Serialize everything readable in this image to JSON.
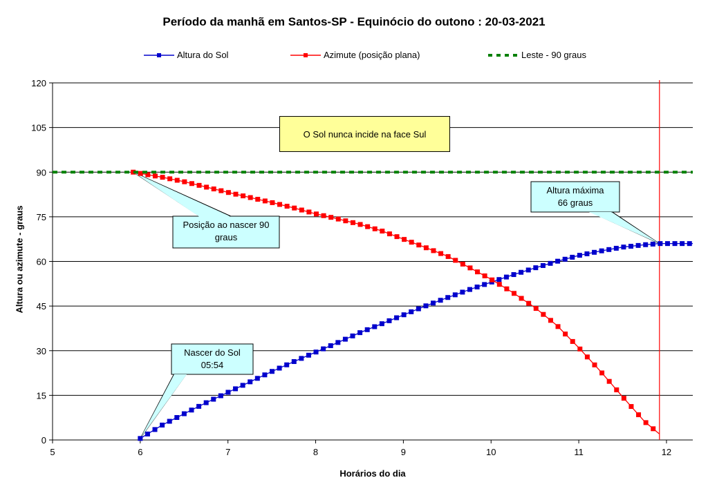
{
  "chart_data": {
    "type": "line",
    "title": "Período da manhã em Santos-SP  -  Equinócio do outono : 20-03-2021",
    "xlabel": "Horários do dia",
    "ylabel": "Altura ou azimute - graus",
    "xlim": [
      5,
      12.3
    ],
    "ylim": [
      0,
      120
    ],
    "x_ticks": [
      "5",
      "6",
      "7",
      "8",
      "9",
      "10",
      "11",
      "12"
    ],
    "y_ticks": [
      "0",
      "15",
      "30",
      "45",
      "60",
      "75",
      "90",
      "105",
      "120"
    ],
    "grid": "horizontal",
    "legend_position": "top",
    "series": [
      {
        "name": "Altura do Sol",
        "color": "#0000cc",
        "marker": "square",
        "points": [
          [
            6.0,
            0.5
          ],
          [
            6.25,
            5
          ],
          [
            6.5,
            8.8
          ],
          [
            6.75,
            12.5
          ],
          [
            7.0,
            16
          ],
          [
            7.25,
            19.5
          ],
          [
            7.5,
            23
          ],
          [
            7.75,
            26.3
          ],
          [
            8.0,
            29.5
          ],
          [
            8.25,
            32.7
          ],
          [
            8.5,
            36
          ],
          [
            8.75,
            39
          ],
          [
            9.0,
            42
          ],
          [
            9.25,
            45
          ],
          [
            9.5,
            47.8
          ],
          [
            9.75,
            50.5
          ],
          [
            10.0,
            53
          ],
          [
            10.25,
            55.5
          ],
          [
            10.5,
            57.8
          ],
          [
            10.75,
            60
          ],
          [
            11.0,
            62
          ],
          [
            11.25,
            63.5
          ],
          [
            11.5,
            64.8
          ],
          [
            11.75,
            65.6
          ],
          [
            11.92,
            66
          ],
          [
            12.3,
            66
          ]
        ]
      },
      {
        "name": "Azimute (posição plana)",
        "color": "#ff0000",
        "marker": "square",
        "points": [
          [
            5.92,
            90
          ],
          [
            6.25,
            88.3
          ],
          [
            6.5,
            86.8
          ],
          [
            6.75,
            85
          ],
          [
            7.0,
            83.2
          ],
          [
            7.25,
            81.5
          ],
          [
            7.5,
            79.8
          ],
          [
            7.75,
            78
          ],
          [
            8.0,
            76
          ],
          [
            8.25,
            74.3
          ],
          [
            8.5,
            72.5
          ],
          [
            8.75,
            70.3
          ],
          [
            9.0,
            67.5
          ],
          [
            9.25,
            64.7
          ],
          [
            9.5,
            61.8
          ],
          [
            9.75,
            58
          ],
          [
            10.0,
            54
          ],
          [
            10.25,
            49.5
          ],
          [
            10.5,
            44.5
          ],
          [
            10.75,
            38.5
          ],
          [
            11.0,
            31
          ],
          [
            11.25,
            23
          ],
          [
            11.5,
            14.5
          ],
          [
            11.75,
            6.2
          ],
          [
            11.92,
            2
          ]
        ]
      },
      {
        "name": "Leste - 90 graus",
        "color": "#008000",
        "style": "dashed",
        "points": [
          [
            5,
            90
          ],
          [
            12.3,
            90
          ]
        ]
      }
    ],
    "vertical_line": {
      "x": 11.92,
      "color": "#ff0000"
    },
    "annotations": {
      "rise_position": {
        "text": "Posição ao nascer  90\ngraus",
        "point": [
          5.92,
          90
        ]
      },
      "max_height": {
        "text": "Altura máxima\n66 graus",
        "point": [
          11.92,
          66
        ]
      },
      "sunrise": {
        "text": "Nascer do Sol\n05:54",
        "point": [
          6.0,
          0.5
        ]
      },
      "note": "O Sol nunca incide na face Sul"
    }
  }
}
